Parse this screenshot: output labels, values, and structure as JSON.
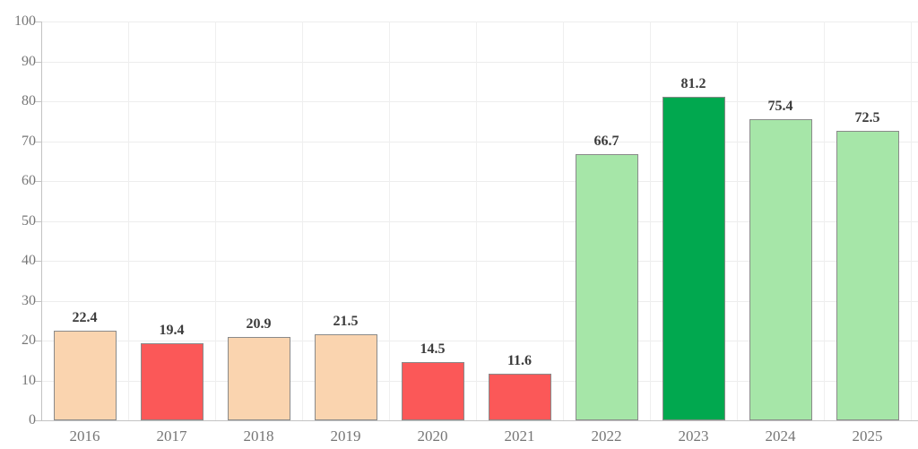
{
  "chart_data": {
    "type": "bar",
    "title": "",
    "xlabel": "",
    "ylabel": "",
    "categories": [
      "2016",
      "2017",
      "2018",
      "2019",
      "2020",
      "2021",
      "2022",
      "2023",
      "2024",
      "2025"
    ],
    "values": [
      22.4,
      19.4,
      20.9,
      21.5,
      14.5,
      11.6,
      66.7,
      81.2,
      75.4,
      72.5
    ],
    "value_labels": [
      "22.4",
      "19.4",
      "20.9",
      "21.5",
      "14.5",
      "11.6",
      "66.7",
      "81.2",
      "75.4",
      "72.5"
    ],
    "bar_colors": [
      "#FAD4AF",
      "#FB5858",
      "#FAD4AF",
      "#FAD4AF",
      "#FB5858",
      "#FB5858",
      "#A6E6A8",
      "#01A84F",
      "#A6E6A8",
      "#A6E6A8"
    ],
    "bar_border_color": "#8A8A8A",
    "ylim": [
      0,
      100
    ],
    "ytick_step": 10,
    "ytick_labels": [
      "0",
      "10",
      "20",
      "30",
      "40",
      "50",
      "60",
      "70",
      "80",
      "90",
      "100"
    ],
    "grid": "on",
    "legend": "none",
    "palette": {
      "peach": "#FAD4AF",
      "red": "#FB5858",
      "light_green": "#A6E6A8",
      "dark_green": "#01A84F",
      "grid_color": "#EDEDED",
      "axis_color": "#C3C3C3",
      "axis_text_color": "#767676",
      "value_text_color": "#3B3B3B"
    }
  }
}
